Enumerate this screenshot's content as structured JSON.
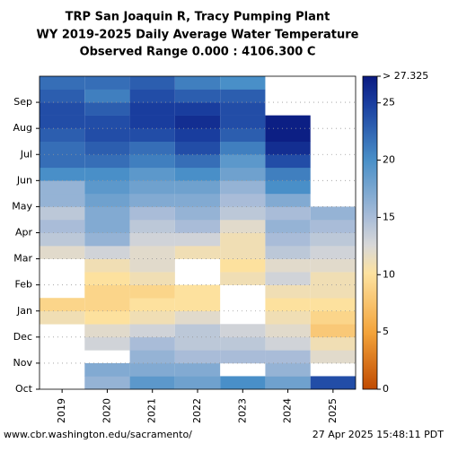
{
  "chart_data": {
    "type": "heatmap",
    "title": [
      "TRP San Joaquin R, Tracy Pumping Plant",
      "WY 2019-2025 Daily Average Water Temperature",
      "Observed Range 0.000 : 4106.300 C"
    ],
    "categories": [
      "2019",
      "2020",
      "2021",
      "2022",
      "2023",
      "2024",
      "2025"
    ],
    "y_categories": [
      "Oct",
      "Nov",
      "Dec",
      "Jan",
      "Feb",
      "Mar",
      "Apr",
      "May",
      "Jun",
      "Jul",
      "Aug",
      "Sep"
    ],
    "values": [
      [
        null,
        null,
        null,
        null,
        null,
        11,
        9,
        null,
        null,
        null,
        12,
        14,
        15,
        14,
        16,
        16,
        20,
        22,
        22,
        23,
        24,
        24,
        23,
        22
      ],
      [
        16,
        17,
        null,
        13,
        12,
        10,
        9,
        9,
        10,
        11,
        13,
        16,
        17,
        17,
        18,
        19,
        20,
        22,
        23,
        24,
        24,
        23,
        21,
        22
      ],
      [
        19,
        17,
        16,
        15,
        13,
        11,
        10,
        9,
        11,
        12,
        12,
        13,
        14,
        15,
        17,
        18,
        19,
        21,
        22,
        24,
        25,
        25,
        24,
        23
      ],
      [
        18,
        17,
        15,
        14,
        14,
        12,
        10,
        10,
        null,
        null,
        11,
        13,
        15,
        16,
        17,
        18,
        20,
        22,
        24,
        25,
        26,
        25,
        23,
        21
      ],
      [
        20,
        null,
        15,
        14,
        13,
        null,
        null,
        null,
        11,
        10,
        11,
        11,
        12,
        14,
        15,
        16,
        18,
        19,
        21,
        23,
        24,
        24,
        23,
        20
      ],
      [
        18,
        16,
        15,
        13,
        12,
        11,
        10,
        11,
        13,
        12,
        14,
        15,
        16,
        15,
        17,
        20,
        21,
        24,
        26,
        27,
        27,
        null,
        null,
        null
      ],
      [
        24,
        null,
        12,
        11,
        8,
        9,
        10,
        11,
        11,
        12,
        13,
        14,
        15,
        16,
        null,
        null,
        null,
        null,
        null,
        null,
        null,
        null,
        null,
        null
      ]
    ],
    "clim": [
      0,
      27.325
    ],
    "cticks": [
      0,
      5,
      10,
      15,
      20,
      25,
      {
        "value": 27.325,
        "label": "> 27.325"
      }
    ],
    "grid": true,
    "footer_left": "www.cbr.washington.edu/sacramento/",
    "footer_right": "27 Apr 2025 15:48:11 PDT"
  }
}
